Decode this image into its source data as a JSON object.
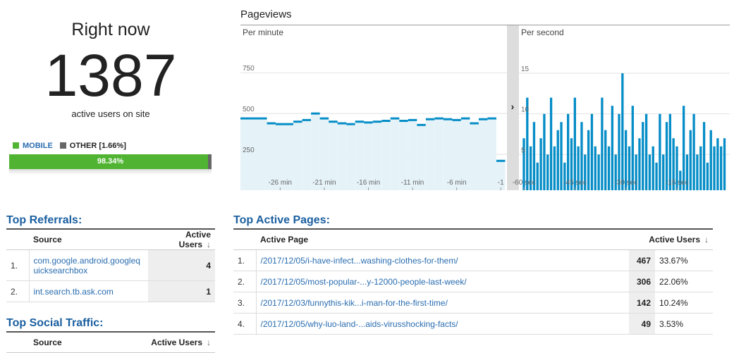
{
  "right_now": {
    "title": "Right now",
    "count": 1387,
    "caption": "active users on site",
    "legend": [
      {
        "label": "MOBILE",
        "color": "#50b432"
      },
      {
        "label": "OTHER [1.66%]",
        "color": "#666666"
      }
    ],
    "mobile_share": 98.34,
    "mobile_share_label": "98.34%"
  },
  "pageviews": {
    "title": "Pageviews",
    "per_minute": {
      "type": "step-area",
      "title": "Per minute",
      "color": "#058dc7",
      "x": [
        -30,
        -29,
        -28,
        -27,
        -26,
        -25,
        -24,
        -23,
        -22,
        -21,
        -20,
        -19,
        -18,
        -17,
        -16,
        -15,
        -14,
        -13,
        -12,
        -11,
        -10,
        -9,
        -8,
        -7,
        -6,
        -5,
        -4,
        -3,
        -2,
        -1
      ],
      "values": [
        470,
        470,
        470,
        440,
        435,
        435,
        450,
        460,
        500,
        470,
        450,
        440,
        435,
        450,
        445,
        450,
        455,
        470,
        455,
        460,
        430,
        465,
        470,
        465,
        460,
        470,
        440,
        465,
        470,
        210
      ],
      "xlim": [
        -30.5,
        -0.3
      ],
      "xticks": [
        {
          "value": -26,
          "label": "-26 min"
        },
        {
          "value": -21,
          "label": "-21 min"
        },
        {
          "value": -16,
          "label": "-16 min"
        },
        {
          "value": -11,
          "label": "-11 min"
        },
        {
          "value": -6,
          "label": "-6 min"
        },
        {
          "value": -1,
          "label": "-1"
        }
      ],
      "ylim": [
        30,
        1040
      ],
      "yticks": [
        250,
        500,
        750
      ],
      "grid": true
    },
    "per_second": {
      "type": "bar",
      "title": "Per second",
      "color": "#058dc7",
      "x": [
        -60,
        -59,
        -58,
        -57,
        -56,
        -55,
        -54,
        -53,
        -52,
        -51,
        -50,
        -49,
        -48,
        -47,
        -46,
        -45,
        -44,
        -43,
        -42,
        -41,
        -40,
        -39,
        -38,
        -37,
        -36,
        -35,
        -34,
        -33,
        -32,
        -31,
        -30,
        -29,
        -28,
        -27,
        -26,
        -25,
        -24,
        -23,
        -22,
        -21,
        -20,
        -19,
        -18,
        -17,
        -16,
        -15,
        -14,
        -13,
        -12,
        -11,
        -10,
        -9,
        -8,
        -7,
        -6,
        -5,
        -4,
        -3,
        -2,
        -1
      ],
      "values": [
        7,
        12,
        6,
        9,
        4,
        7,
        10,
        5,
        12,
        6,
        8,
        9,
        4,
        10,
        7,
        12,
        6,
        9,
        5,
        8,
        10,
        6,
        5,
        12,
        8,
        6,
        11,
        5,
        10,
        15,
        8,
        6,
        11,
        5,
        7,
        9,
        10,
        5,
        6,
        4,
        10,
        5,
        9,
        10,
        7,
        6,
        3,
        11,
        5,
        8,
        10,
        5,
        6,
        9,
        4,
        8,
        6,
        7,
        6,
        7
      ],
      "xlim": [
        -61.5,
        0.5
      ],
      "xticks": [
        {
          "value": -60,
          "label": "-60 sec"
        },
        {
          "value": -45,
          "label": "-45 sec"
        },
        {
          "value": -30,
          "label": "-30 sec"
        },
        {
          "value": -15,
          "label": "-15 sec"
        }
      ],
      "ylim": [
        0.6,
        20.9
      ],
      "yticks": [
        5,
        10,
        15
      ],
      "grid": true
    }
  },
  "top_referrals": {
    "title": "Top Referrals:",
    "headers": [
      "Source",
      "Active Users"
    ],
    "rows": [
      [
        "1.",
        "com.google.android.googlequicksearchbox",
        4
      ],
      [
        "2.",
        "int.search.tb.ask.com",
        1
      ]
    ]
  },
  "top_social": {
    "title": "Top Social Traffic:",
    "headers": [
      "Source",
      "Active Users"
    ]
  },
  "top_pages": {
    "title": "Top Active Pages:",
    "headers": [
      "Active Page",
      "Active Users"
    ],
    "rows": [
      [
        "1.",
        "/2017/12/05/i-have-infect...washing-clothes-for-them/",
        467,
        "33.67%"
      ],
      [
        "2.",
        "/2017/12/05/most-popular-...y-12000-people-last-week/",
        306,
        "22.06%"
      ],
      [
        "3.",
        "/2017/12/03/funnythis-kik...i-man-for-the-first-time/",
        142,
        "10.24%"
      ],
      [
        "4.",
        "/2017/12/05/why-luo-land-...aids-virusshocking-facts/",
        49,
        "3.53%"
      ]
    ]
  }
}
